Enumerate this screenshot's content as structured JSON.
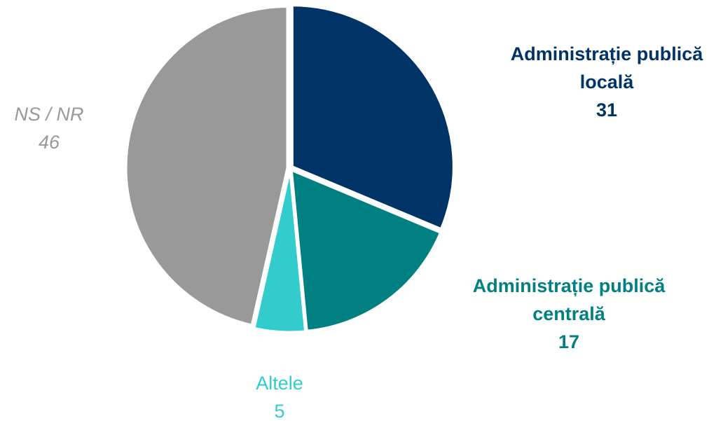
{
  "chart_data": {
    "type": "pie",
    "title": "",
    "legend": "none",
    "slices": [
      {
        "label_lines": [
          "Administrație publică",
          "locală"
        ],
        "value": 31,
        "color": "#003366",
        "label_color": "#003366",
        "label_style": "bold"
      },
      {
        "label_lines": [
          "Administrație publică",
          "centrală"
        ],
        "value": 17,
        "color": "#008080",
        "label_color": "#008080",
        "label_style": "bold"
      },
      {
        "label_lines": [
          "Altele"
        ],
        "value": 5,
        "color": "#33cccc",
        "label_color": "#33cccc",
        "label_style": "normal"
      },
      {
        "label_lines": [
          "NS / NR"
        ],
        "value": 46,
        "color": "#999999",
        "label_color": "#999999",
        "label_style": "italic"
      }
    ]
  }
}
